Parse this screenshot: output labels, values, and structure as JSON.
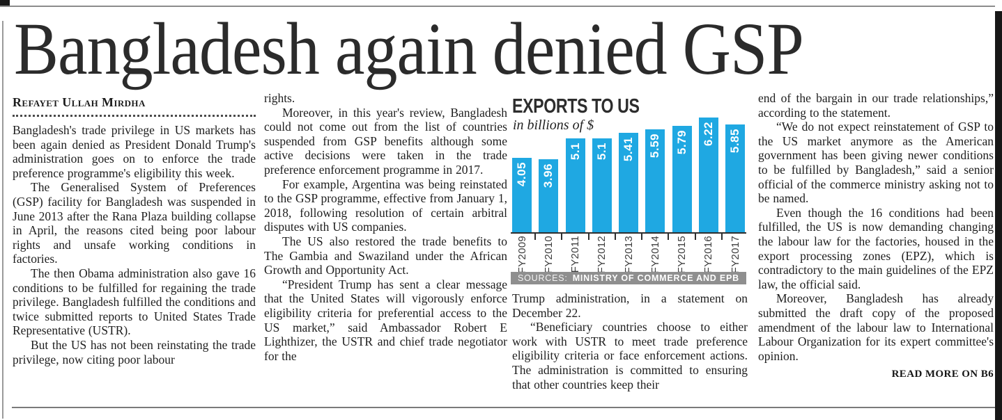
{
  "page": {
    "headline": "Bangladesh again denied GSP",
    "byline": "Refayet Ullah Mirdha",
    "read_more": "READ MORE ON B6"
  },
  "article": {
    "column1": [
      "Bangladesh's trade privilege in US markets has been again denied as President Donald Trump's administration goes on to enforce the trade preference programme's eligibility this week.",
      "The Generalised System of Preferences (GSP) facility for Bangladesh was suspended in June 2013 after the Rana Plaza building collapse in April, the reasons cited being poor labour rights and unsafe working conditions in factories.",
      "The then Obama administration also gave 16 conditions to be fulfilled for regaining the trade privilege. Bangladesh fulfilled the conditions and twice submitted reports to United States Trade Representative (USTR).",
      "But the US has not been reinstating the trade privilege, now citing poor labour"
    ],
    "column2": [
      "rights.",
      "Moreover, in this year's review, Bangladesh could not come out from the list of countries suspended from GSP benefits although some active decisions were taken in the trade preference enforcement programme in 2017.",
      "For example, Argentina was being reinstated to the GSP programme, effective from January 1, 2018, following resolution of certain arbitral disputes with US companies.",
      "The US also restored the trade benefits to The Gambia and Swaziland under the African Growth and Opportunity Act.",
      "“President Trump has sent a clear message that the United States will vigorously enforce eligibility criteria for preferential access to the US market,” said Ambassador Robert E Lighthizer, the USTR and chief trade negotiator for the"
    ],
    "column3": [
      "Trump administration, in a statement on December 22.",
      "“Beneficiary countries choose to either work with USTR to meet trade preference eligibility criteria or face enforcement actions. The administration is committed to ensuring that other countries keep their"
    ],
    "column4": [
      "end of the bargain in our trade relationships,” according to the statement.",
      "“We do not expect reinstatement of GSP to the US market anymore as the American government has been giving newer conditions to be fulfilled by Bangladesh,” said a senior official of the commerce ministry asking not to be named.",
      "Even though the 16 conditions had been fulfilled, the US is now demanding changing the labour law for the factories, housed in the export processing zones (EPZ), which is contradictory to the main guidelines of the EPZ law, the official said.",
      "Moreover, Bangladesh has already submitted the draft copy of the proposed amendment of the labour law to International Labour Organization for its expert committee's opinion."
    ]
  },
  "chart_data": {
    "type": "bar",
    "title": "EXPORTS TO US",
    "subtitle": "in billions of $",
    "categories": [
      "FY2009",
      "FY2010",
      "FY2011",
      "FY2012",
      "FY2013",
      "FY2014",
      "FY2015",
      "FY2016",
      "FY2017"
    ],
    "values": [
      4.05,
      3.96,
      5.1,
      5.1,
      5.41,
      5.59,
      5.79,
      6.22,
      5.85
    ],
    "value_labels": [
      "4.05",
      "3.96",
      "5.1",
      "5.1",
      "5.41",
      "5.59",
      "5.79",
      "6.22",
      "5.85"
    ],
    "ylim": [
      0,
      6.65
    ],
    "grid": false,
    "legend": "none",
    "source": {
      "prefix": "SOURCES:",
      "text": "MINISTRY OF COMMERCE AND EPB"
    },
    "bar_color": "#1fa8e2",
    "value_label_color": "#ffffff",
    "axis_color": "#2e2e2e",
    "source_bar_color": "#8f8f8f"
  }
}
